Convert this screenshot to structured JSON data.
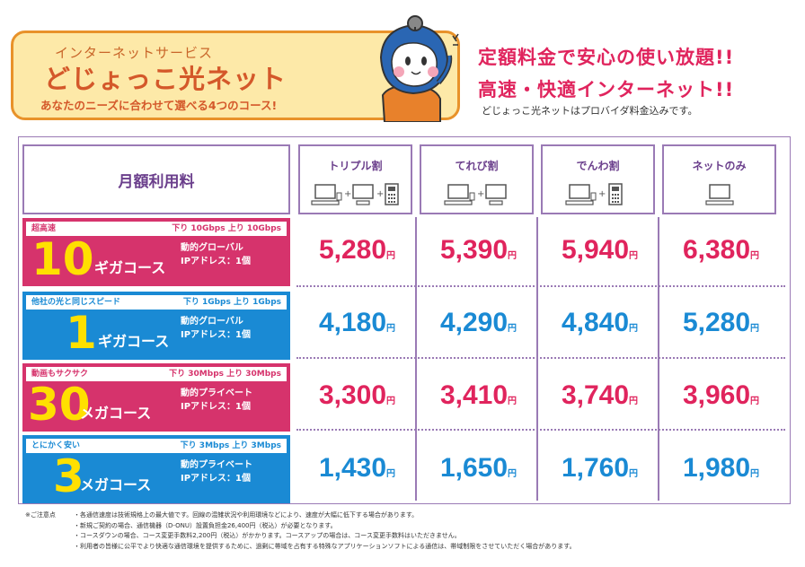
{
  "brand": {
    "kicker": "インターネットサービス",
    "title": "どじょっこ光ネット",
    "subtitle": "あなたのニーズに合わせて選べる4つのコース!"
  },
  "headline": {
    "line1": "定額料金で安心の使い放題!!",
    "line2": "高速・快適インターネット!!",
    "tagline": "どじょっこ光ネットはプロバイダ料金込みです。"
  },
  "table": {
    "fee_header": "月額利用料",
    "currency_unit": "円",
    "columns": [
      {
        "label": "トリプル割",
        "icons": [
          "pc-icon",
          "tv-icon",
          "phone-icon"
        ]
      },
      {
        "label": "てれび割",
        "icons": [
          "pc-icon",
          "tv-icon"
        ]
      },
      {
        "label": "でんわ割",
        "icons": [
          "pc-icon",
          "phone-icon"
        ]
      },
      {
        "label": "ネットのみ",
        "icons": [
          "pc-icon"
        ]
      }
    ],
    "courses": [
      {
        "tag": "超高速",
        "speed": "下り 10Gbps  上り 10Gbps",
        "number": "10",
        "name": "ギガコース",
        "ip_type": "動的グローバル",
        "ip_count": "IPアドレス：1個",
        "color": "#d6336c",
        "prices": [
          "5,280",
          "5,390",
          "5,940",
          "6,380"
        ]
      },
      {
        "tag": "他社の光と同じスピード",
        "speed": "下り 1Gbps  上り 1Gbps",
        "number": "1",
        "name": "ギガコース",
        "ip_type": "動的グローバル",
        "ip_count": "IPアドレス：1個",
        "color": "#1a8ad4",
        "prices": [
          "4,180",
          "4,290",
          "4,840",
          "5,280"
        ]
      },
      {
        "tag": "動画もサクサク",
        "speed": "下り 30Mbps  上り 30Mbps",
        "number": "30",
        "name": "メガコース",
        "ip_type": "動的プライベート",
        "ip_count": "IPアドレス：1個",
        "color": "#d6336c",
        "prices": [
          "3,300",
          "3,410",
          "3,740",
          "3,960"
        ]
      },
      {
        "tag": "とにかく安い",
        "speed": "下り 3Mbps  上り 3Mbps",
        "number": "3",
        "name": "メガコース",
        "ip_type": "動的プライベート",
        "ip_count": "IPアドレス：1個",
        "color": "#1a8ad4",
        "prices": [
          "1,430",
          "1,650",
          "1,760",
          "1,980"
        ]
      }
    ]
  },
  "notes": {
    "label": "※ご注意点",
    "items": [
      "・各通信速度は技術規格上の最大値です。回線の混雑状況や利用環境などにより、速度が大幅に低下する場合があります。",
      "・新規ご契約の場合、通信機器（D-ONU）設置負担金26,400円（税込）が必要となります。",
      "・コースダウンの場合、コース変更手数料2,200円（税込）がかかります。コースアップの場合は、コース変更手数料はいただきません。",
      "・利用者の皆様に公平でより快適な通信環境を提供するために、過剰に帯域を占有する特殊なアプリケーションソフトによる通信は、帯域制限をさせていただく場合があります。"
    ]
  },
  "colors": {
    "pink": "#d6336c",
    "blue": "#1a8ad4",
    "price_pink": "#e0245d",
    "price_blue": "#1a8ad4",
    "border_purple": "#9a7ab5",
    "brand_orange": "#d4582a"
  }
}
